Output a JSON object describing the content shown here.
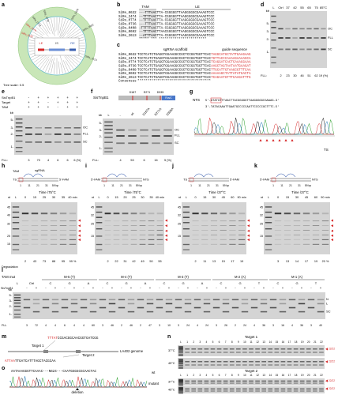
{
  "a": {
    "label": "a",
    "taxa": [
      "SiRe_0632",
      "SiRe_2474",
      "SiRe_0774",
      "SiRe_0736",
      "SiRe_0408",
      "SiRe_0692",
      "SiRe_2613"
    ],
    "inset": [
      "LE",
      "IS",
      "RE"
    ],
    "scale": "Tree scale: 0.5"
  },
  "b": {
    "label": "b",
    "tam": "TAM",
    "le": "LE",
    "rows": [
      {
        "name": "SiRe_0632",
        "seq": "---TTTAACTTA-CGGGGGTTAAGGGGGCGAAAGTCCC"
      },
      {
        "name": "SiRe_2474",
        "seq": "--TTTTAACTTA-CGGGGGTTAAGGGGGCGAAAGTCCC"
      },
      {
        "name": "SiRe_0774",
        "seq": "--TTTTAACTTA-CGGGGGTTAAGGGGGCGAAAGTCCC"
      },
      {
        "name": "SiRe_0736",
        "seq": "---TTTAACTTA-CGGGGGTTAAGGGGGCGAAAGTCCC"
      },
      {
        "name": "SiRe_0408",
        "seq": "-TTTTTAACTTA-CGGGGGTTAAGGGGGCGAAAGTCCC"
      },
      {
        "name": "SiRe_0692",
        "seq": "--TTTTAACTTAACGGGGGTTAAGGGGGCGAAAGTCCC"
      },
      {
        "name": "SiRe_2613",
        "seq": "--ATTTAACTTA-CGGGGGTTAAGGGGGCGAAAGTCCC"
      }
    ],
    "consensus": "   ***** ***  ************************"
  },
  "c": {
    "label": "c",
    "scaffold_title": "sgRNA scaffold",
    "guide_title": "guide sequence",
    "rows": [
      {
        "name": "SiRe_0632",
        "scaffold": "TCCTCATCTGAGGTGGAAGGCCGCTCCGGTGGTTCAC",
        "guide": "TAGGCATGCTATTGAAGAAG"
      },
      {
        "name": "SiRe_2474",
        "scaffold": "TCCTCATCTGAGGTGGAAGGCCGCTCCGGTGGTTCAC",
        "guide": "TGTTACCCAAAAGAAAAGCA"
      },
      {
        "name": "SiRe_0774",
        "scaffold": "TCCTCATCTGAGGTGGAAGGCCGCTCCGGTGGTTCAC",
        "guide": "TCAGGATCACTCAAAGGAAA"
      },
      {
        "name": "SiRe_0736",
        "scaffold": "TCCTCATCTGAGGTGGAAGGCCGCTCCGGTGGTTCAC",
        "guide": "AAGCTAGTAATAATGAAGAT"
      },
      {
        "name": "SiRe_0408",
        "scaffold": "TCCTCATCTGAGGTGGAAGGCCGCTCCGGTGGTTCAC",
        "guide": "TTGCATTGTAAGCGTTTCAA"
      },
      {
        "name": "SiRe_0692",
        "scaffold": "TCCTCATCTGAGGTGGAAGGCCGCTCCGGTGGTTCAC",
        "guide": "AAAAAGCTATTATATGACTA"
      },
      {
        "name": "SiRe_2613",
        "scaffold": "TCCTCATCTGAGGTGGAAGGCCGCTCCGGTGGTTCAC",
        "guide": "TCAGAATGTTTCAAGATTTG"
      }
    ],
    "consensus_name": "Consensus",
    "consensus": "*************************************"
  },
  "d": {
    "label": "d",
    "lanes": [
      "L",
      "Ctrl",
      "37",
      "42",
      "55",
      "65",
      "75",
      "85°C"
    ],
    "kb": [
      "kb",
      "5-",
      "3-",
      "2-",
      "1-"
    ],
    "forms": [
      "OC",
      "FLL",
      "SC"
    ],
    "fll_label": "FLL:",
    "fll": [
      "2",
      "23",
      "30",
      "46",
      "51",
      "62",
      "19 (%)"
    ]
  },
  "e": {
    "label": "e",
    "rows": [
      {
        "name": "SisTnpB1",
        "signs": [
          "-",
          "+",
          "+",
          "+",
          "+",
          "+"
        ]
      },
      {
        "name": "Target",
        "signs": [
          "+",
          "+",
          "-",
          "+",
          "+",
          "+"
        ]
      },
      {
        "name": "TAM",
        "signs": [
          "+",
          "+",
          "+",
          "-",
          "+",
          "+"
        ]
      }
    ],
    "kb": [
      "kb",
      "5-",
      "3-",
      "2-",
      "1-"
    ],
    "forms": [
      "OC",
      "FLL",
      "SC"
    ],
    "fll_label": "FLL:",
    "fll": [
      "3",
      "70",
      "4",
      "6",
      "6",
      "6 (%)"
    ]
  },
  "f": {
    "label": "f",
    "protein": "SisTnpB1",
    "sites": [
      "D187",
      "E271",
      "D335"
    ],
    "domain": "RuvC",
    "lanes": [
      "L",
      "-",
      "wt",
      "D187A",
      "E271A",
      "D335A"
    ],
    "kb": [
      "kb",
      "5-",
      "3-",
      "2-",
      "1-"
    ],
    "forms": [
      "OC",
      "FLL",
      "SC"
    ],
    "fll_label": "FLL:",
    "fll": [
      "4",
      "53",
      "6",
      "16",
      "5 (%)"
    ]
  },
  "g": {
    "label": "g",
    "nts": "NTS",
    "ts": "TS",
    "nts_seq": "5'-ATATGTTTAACTTACGGGGGTTAAGGGGGCGAAAG-3'",
    "ts_seq": "3'-TATACAAATTGAATGCCCCCAATTCCCCCGCTTTC-5'"
  },
  "h": {
    "label": "h",
    "tam": "TAM",
    "sgrna": "sgRNA",
    "left": "TS",
    "right": "5'-FAM",
    "ruler": [
      "1",
      "11",
      "21",
      "31",
      "59 bp"
    ],
    "time": "Time /75°C",
    "nt": "nt",
    "ladder": [
      "45",
      "40",
      "32",
      "25",
      "15"
    ],
    "lanes": [
      "L",
      "0",
      "15",
      "25",
      "30",
      "35",
      "40 min"
    ],
    "deg_label": "Degradation",
    "deg": [
      "2",
      "43",
      "73",
      "88",
      "95",
      "99 %"
    ]
  },
  "i": {
    "label": "i",
    "left": "5'-FAM",
    "right": "NTS",
    "ruler": [
      "1",
      "11",
      "21",
      "31",
      "59 bp"
    ],
    "time": "Time /75°C",
    "nt": "nt",
    "ladder": [
      "45",
      "32",
      "25",
      "15"
    ],
    "lanes": [
      "L",
      "0",
      "15",
      "20",
      "25",
      "30",
      "35",
      "40 min"
    ],
    "deg": [
      "2",
      "22",
      "31",
      "42",
      "49",
      "50",
      "55"
    ]
  },
  "j": {
    "label": "j",
    "left": "TS",
    "right": "5'-FAM",
    "ruler": [
      "1",
      "11",
      "21",
      "31",
      "59 bp"
    ],
    "time": "Time /37°C",
    "nt": "nt",
    "ladder": [
      "45",
      "32",
      "25",
      "15"
    ],
    "lanes": [
      "L",
      "0",
      "15",
      "30",
      "45",
      "60",
      "90 min"
    ],
    "deg": [
      "2",
      "11",
      "13",
      "15",
      "17",
      "19"
    ]
  },
  "k": {
    "label": "k",
    "left": "5'-FAM",
    "right": "NTS",
    "ruler": [
      "1",
      "11",
      "21",
      "31",
      "59 bp"
    ],
    "time": "Time /37°C",
    "nt": "nt",
    "ladder": [
      "45",
      "32",
      "25",
      "15"
    ],
    "lanes": [
      "L",
      "0",
      "15",
      "30",
      "45",
      "60",
      "90 min"
    ],
    "deg": [
      "3",
      "13",
      "14",
      "17",
      "19",
      "20 %"
    ]
  },
  "l": {
    "label": "l",
    "title": "TAM mut",
    "lane_l": "L",
    "ctrl": "Ctrl",
    "groups": [
      {
        "name": "M-5 (T)",
        "letters": [
          "C",
          "G",
          "A"
        ]
      },
      {
        "name": "M-4 (T)",
        "letters": [
          "C",
          "G",
          "A"
        ]
      },
      {
        "name": "M-3 (T)",
        "letters": [
          "C",
          "G",
          "A"
        ]
      },
      {
        "name": "M-2 (A)",
        "letters": [
          "C",
          "G",
          "T"
        ]
      },
      {
        "name": "M-1 (A)",
        "letters": [
          "C",
          "G",
          "T"
        ]
      }
    ],
    "enzyme": "SisTnpB1",
    "signs": [
      "-",
      "+",
      "-",
      "+",
      "-",
      "+",
      "-",
      "+",
      "-",
      "+",
      "-",
      "+",
      "-",
      "+",
      "-",
      "+",
      "-",
      "+",
      "-",
      "+",
      "-",
      "+",
      "-",
      "+",
      "-",
      "+",
      "-",
      "+",
      "-",
      "+",
      "-",
      "+"
    ],
    "kb": [
      "kb",
      "5-",
      "3-",
      "2-",
      "1-"
    ],
    "forms": [
      "N",
      "L",
      "SC"
    ],
    "fll_label": "FLL",
    "fll": [
      "3",
      "72",
      "4",
      "4",
      "6",
      "4",
      "4",
      "60",
      "3",
      "46",
      "2",
      "46",
      "2",
      "47",
      "3",
      "10",
      "3",
      "24",
      "4",
      "24",
      "3",
      "26",
      "2",
      "24",
      "4",
      "36",
      "3",
      "16",
      "4",
      "36",
      "3",
      "40"
    ]
  },
  "m": {
    "label": "m",
    "seq1_tam": "TTTAT",
    "seq1": "CCGACGGCAACGGTGATCGG",
    "seq2_tam": "ATTAA",
    "seq2": "TTGATCATTTAGCTACGCAA",
    "target1": "Target 1",
    "target2": "Target 2",
    "genome": "LA402 genome"
  },
  "n": {
    "label": "n",
    "targets": [
      "Target 1",
      "Target 2"
    ],
    "temps": [
      "37°C",
      "45°C"
    ],
    "lanes": [
      "L",
      "1",
      "2",
      "3",
      "4",
      "5",
      "6",
      "7",
      "8",
      "9",
      "10",
      "11",
      "12",
      "13",
      "14",
      "15",
      "16",
      "17",
      "18",
      "19",
      "20",
      "21",
      "22"
    ],
    "ratio": "22/22"
  },
  "o": {
    "label": "o",
    "seq": "AATAAAGGGTTCAAAC---N624---CAATGGGGCGCAACTAC",
    "wt": "wt",
    "mutant": "mutant",
    "deletion": "deletion"
  }
}
